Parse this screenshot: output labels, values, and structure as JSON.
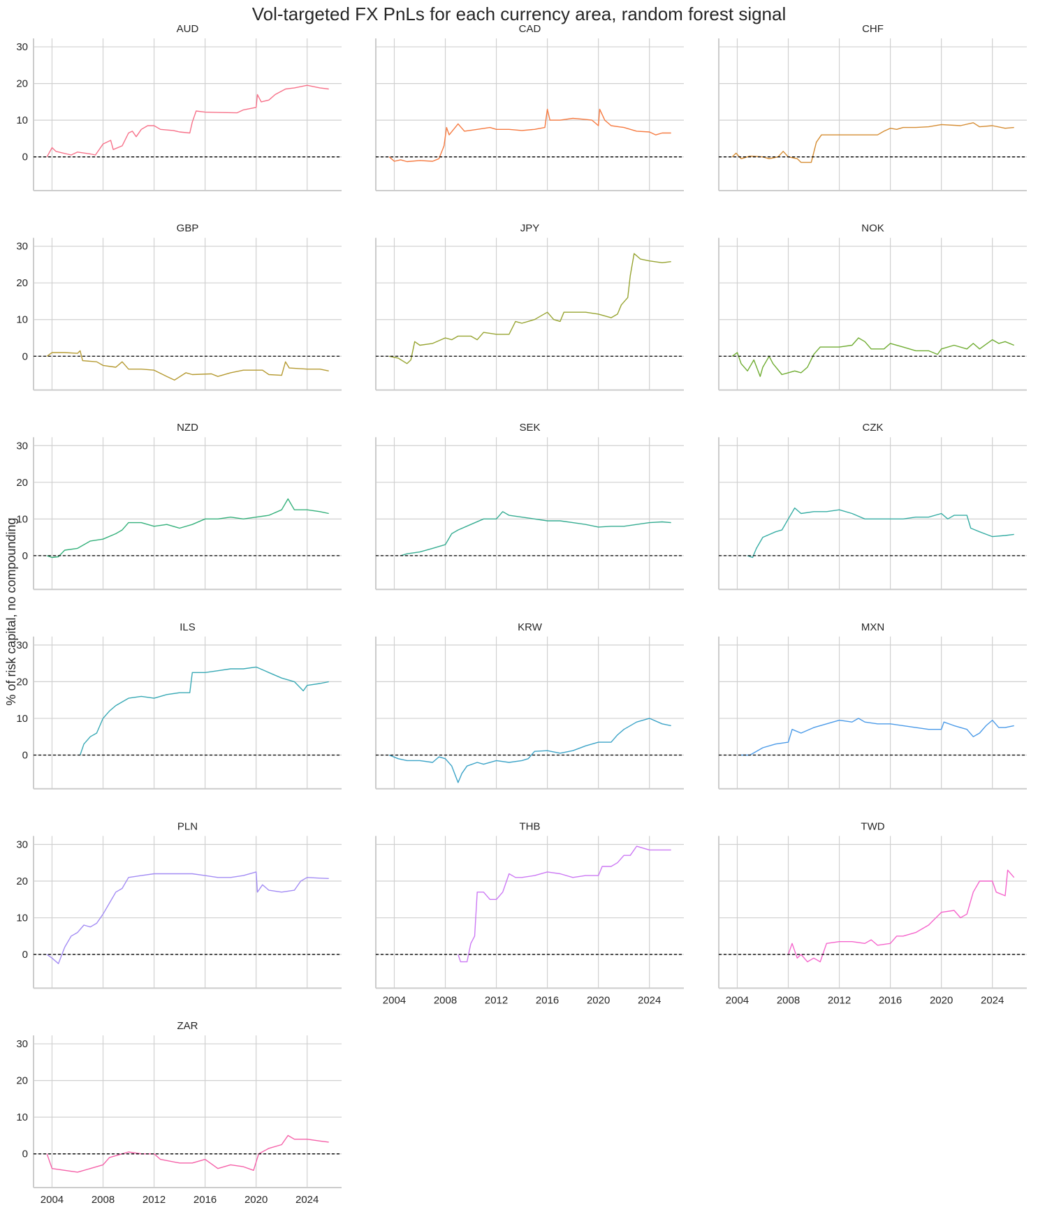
{
  "chart_data": {
    "type": "line",
    "title": "Vol-targeted FX PnLs for each currency area, random forest signal",
    "ylabel": "% of risk capital, no compounding",
    "xlabel": "",
    "ylim": [
      -9.2,
      32.3
    ],
    "xlim": [
      2002.55,
      2026.7
    ],
    "x_ticks": [
      "2004",
      "2008",
      "2012",
      "2016",
      "2020",
      "2024"
    ],
    "y_ticks": [
      "0",
      "10",
      "20",
      "30"
    ],
    "grid": true,
    "reference_line": {
      "y": 0,
      "style": "dashed",
      "color": "#000000"
    },
    "panels": [
      {
        "name": "AUD",
        "color": "#f77189",
        "x": [
          2003.6,
          2004.0,
          2004.3,
          2005.5,
          2006.0,
          2007.0,
          2007.4,
          2008.0,
          2008.6,
          2008.8,
          2009.5,
          2010.0,
          2010.3,
          2010.6,
          2011.0,
          2011.5,
          2012.0,
          2012.5,
          2013.5,
          2014.0,
          2014.8,
          2015.0,
          2015.3,
          2016,
          2017,
          2018.5,
          2019,
          2020.0,
          2020.1,
          2020.4,
          2021,
          2021.5,
          2022.3,
          2023,
          2024.0,
          2025,
          2025.7
        ],
        "y": [
          0,
          2.5,
          1.5,
          0.5,
          1.3,
          0.8,
          0.5,
          3.5,
          4.5,
          2,
          3,
          6.5,
          7,
          5.5,
          7.5,
          8.5,
          8.5,
          7.5,
          7.2,
          6.8,
          6.5,
          9.5,
          12.5,
          12.2,
          12.1,
          12,
          12.8,
          13.5,
          17,
          15,
          15.5,
          17,
          18.5,
          18.8,
          19.5,
          18.8,
          18.5
        ]
      },
      {
        "name": "CAD",
        "color": "#f67a40",
        "x": [
          2003.6,
          2004,
          2004.5,
          2005,
          2006,
          2007,
          2007.5,
          2007.9,
          2008.1,
          2008.3,
          2009,
          2009.5,
          2010.5,
          2011.5,
          2012,
          2013,
          2014,
          2015,
          2015.8,
          2016.0,
          2016.2,
          2017,
          2018,
          2019,
          2019.5,
          2020.0,
          2020.1,
          2020.5,
          2021,
          2022,
          2023,
          2024,
          2024.5,
          2025,
          2025.7
        ],
        "y": [
          0,
          -1.2,
          -0.8,
          -1.3,
          -1,
          -1.2,
          -0.5,
          3,
          8,
          6,
          9,
          7,
          7.5,
          8,
          7.5,
          7.5,
          7.2,
          7.5,
          8,
          13,
          10,
          10,
          10.5,
          10.2,
          10,
          8.5,
          13,
          10,
          8.5,
          8,
          7,
          6.8,
          6,
          6.5,
          6.5
        ]
      },
      {
        "name": "CHF",
        "color": "#d58c32",
        "x": [
          2003.6,
          2003.9,
          2004.3,
          2005,
          2006,
          2006.5,
          2007.2,
          2007.6,
          2008,
          2008.7,
          2009,
          2009.8,
          2010.2,
          2010.6,
          2011.2,
          2015,
          2015.5,
          2016,
          2016.5,
          2017,
          2018,
          2019,
          2020,
          2021.5,
          2022.5,
          2023,
          2024,
          2025,
          2025.7
        ],
        "y": [
          0,
          1,
          -0.5,
          0.2,
          0,
          -0.5,
          0,
          1.5,
          0,
          -0.5,
          -1.5,
          -1.5,
          4,
          6,
          6,
          6,
          7,
          7.8,
          7.5,
          8,
          8,
          8.2,
          8.8,
          8.5,
          9.3,
          8.2,
          8.5,
          7.8,
          8
        ]
      },
      {
        "name": "GBP",
        "color": "#b59a31",
        "x": [
          2003.6,
          2004,
          2005,
          2006,
          2006.2,
          2006.4,
          2007.5,
          2008,
          2009,
          2009.5,
          2010,
          2011,
          2012,
          2013,
          2013.6,
          2014.5,
          2015,
          2016.5,
          2017,
          2018,
          2019,
          2020.5,
          2021,
          2022,
          2022.3,
          2022.6,
          2024,
          2025,
          2025.7
        ],
        "y": [
          0,
          1,
          1,
          0.8,
          1.5,
          -1.2,
          -1.5,
          -2.5,
          -3,
          -1.5,
          -3.5,
          -3.5,
          -3.8,
          -5.5,
          -6.5,
          -4.5,
          -5,
          -4.8,
          -5.5,
          -4.5,
          -3.8,
          -3.8,
          -5,
          -5.2,
          -1.5,
          -3.2,
          -3.5,
          -3.5,
          -4
        ]
      },
      {
        "name": "JPY",
        "color": "#97a431",
        "x": [
          2003.6,
          2004.3,
          2005,
          2005.3,
          2005.6,
          2006,
          2007,
          2008,
          2008.5,
          2009,
          2010,
          2010.5,
          2011,
          2012,
          2013,
          2013.5,
          2014,
          2015,
          2016,
          2016.5,
          2017,
          2017.3,
          2018,
          2019,
          2020,
          2021,
          2021.5,
          2021.8,
          2022.3,
          2022.5,
          2022.8,
          2023.3,
          2024,
          2025,
          2025.7
        ],
        "y": [
          0,
          -0.5,
          -2,
          -1,
          4,
          3,
          3.5,
          5,
          4.5,
          5.5,
          5.5,
          4.5,
          6.5,
          6,
          6,
          9.5,
          9,
          10,
          12,
          10,
          9.5,
          12,
          12,
          12,
          11.5,
          10.5,
          11.5,
          14,
          16,
          22,
          28,
          26.5,
          26,
          25.5,
          25.8
        ]
      },
      {
        "name": "NOK",
        "color": "#6fac31",
        "x": [
          2003.6,
          2004,
          2004.3,
          2004.8,
          2005.3,
          2005.8,
          2006,
          2006.5,
          2006.8,
          2007.5,
          2008,
          2008.5,
          2009,
          2009.5,
          2010,
          2010.5,
          2012,
          2013,
          2013.5,
          2014,
          2014.5,
          2015.5,
          2016,
          2017,
          2018,
          2019,
          2019.7,
          2020,
          2021,
          2022,
          2022.5,
          2023,
          2024,
          2024.5,
          2025,
          2025.7
        ],
        "y": [
          0,
          1,
          -2,
          -4,
          -1,
          -5.5,
          -3,
          0,
          -2,
          -5,
          -4.5,
          -4,
          -4.5,
          -3,
          0.5,
          2.5,
          2.5,
          3,
          5,
          4,
          2,
          2,
          3.5,
          2.5,
          1.5,
          1.5,
          0.5,
          2,
          3,
          2,
          3.5,
          2,
          4.5,
          3.5,
          4,
          3
        ]
      },
      {
        "name": "NZD",
        "color": "#33b07a",
        "x": [
          2003.6,
          2004,
          2004.5,
          2005,
          2006,
          2007,
          2008,
          2009,
          2009.5,
          2010,
          2011,
          2012,
          2013,
          2014,
          2015,
          2016,
          2017,
          2018,
          2019,
          2020,
          2021,
          2022,
          2022.5,
          2023,
          2024,
          2025,
          2025.7
        ],
        "y": [
          0,
          -0.5,
          -0.3,
          1.5,
          2,
          4,
          4.5,
          6,
          7,
          9,
          9,
          8,
          8.5,
          7.5,
          8.5,
          10,
          10,
          10.5,
          10,
          10.5,
          11,
          12.5,
          15.5,
          12.5,
          12.5,
          12,
          11.5
        ]
      },
      {
        "name": "SEK",
        "color": "#35ac91",
        "x": [
          2004.5,
          2005,
          2006,
          2007,
          2008,
          2008.5,
          2009,
          2010,
          2011,
          2012,
          2012.5,
          2013,
          2014,
          2015,
          2016,
          2017,
          2018,
          2019,
          2020,
          2021,
          2022,
          2023,
          2024,
          2025,
          2025.7
        ],
        "y": [
          0,
          0.5,
          1,
          2,
          3,
          6,
          7,
          8.5,
          10,
          10,
          12,
          11,
          10.5,
          10,
          9.5,
          9.5,
          9,
          8.5,
          7.8,
          8,
          8,
          8.5,
          9,
          9.2,
          9
        ]
      },
      {
        "name": "CZK",
        "color": "#36ada4",
        "x": [
          2004.8,
          2005.2,
          2005.5,
          2006,
          2007,
          2007.5,
          2008,
          2008.5,
          2009,
          2010,
          2011,
          2012,
          2013,
          2014,
          2015,
          2016,
          2017,
          2018,
          2019,
          2020,
          2020.5,
          2021,
          2022,
          2022.3,
          2023,
          2024,
          2025,
          2025.7
        ],
        "y": [
          0,
          -0.5,
          2,
          5,
          6.5,
          7,
          10,
          13,
          11.5,
          12,
          12,
          12.5,
          11.5,
          10,
          10,
          10,
          10,
          10.5,
          10.5,
          11.5,
          10,
          11,
          11,
          7.5,
          6.5,
          5.2,
          5.5,
          5.8
        ]
      },
      {
        "name": "ILS",
        "color": "#38a9b5",
        "x": [
          2006.2,
          2006.5,
          2007,
          2007.5,
          2008,
          2008.5,
          2009,
          2010,
          2011,
          2012,
          2013,
          2014,
          2014.8,
          2015,
          2016,
          2017,
          2018,
          2019,
          2020,
          2021,
          2022,
          2023,
          2023.7,
          2024,
          2025,
          2025.7
        ],
        "y": [
          0,
          3,
          5,
          6,
          10,
          12,
          13.5,
          15.5,
          16,
          15.5,
          16.5,
          17,
          17,
          22.5,
          22.5,
          23,
          23.5,
          23.5,
          24,
          22.5,
          21,
          20,
          17.5,
          19,
          19.5,
          20
        ]
      },
      {
        "name": "KRW",
        "color": "#3ba3c7",
        "x": [
          2003.6,
          2004.3,
          2005,
          2006,
          2007,
          2007.5,
          2008,
          2008.5,
          2009,
          2009.3,
          2009.7,
          2010.5,
          2011,
          2012,
          2013,
          2014,
          2014.5,
          2015,
          2016,
          2017,
          2018,
          2019,
          2020,
          2021,
          2021.5,
          2022,
          2023,
          2024,
          2025,
          2025.7
        ],
        "y": [
          0,
          -1,
          -1.5,
          -1.5,
          -2,
          -0.5,
          -1,
          -3,
          -7.5,
          -5,
          -3,
          -2,
          -2.5,
          -1.5,
          -2,
          -1.5,
          -1,
          1,
          1.2,
          0.5,
          1.2,
          2.5,
          3.5,
          3.5,
          5.5,
          7,
          9,
          10,
          8.5,
          8
        ]
      },
      {
        "name": "MXN",
        "color": "#4a9ae8",
        "x": [
          2004.3,
          2005,
          2006,
          2007,
          2008,
          2008.3,
          2009,
          2010,
          2011,
          2012,
          2013,
          2013.5,
          2014,
          2015,
          2016,
          2017,
          2018,
          2019,
          2020,
          2020.2,
          2021,
          2022,
          2022.5,
          2023,
          2023.5,
          2024,
          2024.5,
          2025,
          2025.7
        ],
        "y": [
          0,
          0,
          2,
          3,
          3.5,
          7,
          6,
          7.5,
          8.5,
          9.5,
          9,
          10,
          9,
          8.5,
          8.5,
          8,
          7.5,
          7,
          7,
          9,
          8,
          7,
          5,
          6,
          8,
          9.5,
          7.5,
          7.5,
          8
        ]
      },
      {
        "name": "PLN",
        "color": "#a38cf4",
        "x": [
          2003.6,
          2004,
          2004.5,
          2005,
          2005.5,
          2006,
          2006.5,
          2007,
          2007.5,
          2008,
          2008.5,
          2009,
          2009.5,
          2010,
          2011,
          2012,
          2013,
          2014,
          2015,
          2016,
          2017,
          2018,
          2019,
          2020,
          2020.1,
          2020.5,
          2021,
          2022,
          2023,
          2023.5,
          2024,
          2025,
          2025.7
        ],
        "y": [
          0,
          -1,
          -2.5,
          2,
          5,
          6,
          8,
          7.5,
          8.5,
          11,
          14,
          17,
          18,
          21,
          21.5,
          22,
          22,
          22,
          22,
          21.5,
          21,
          21,
          21.5,
          22.5,
          17,
          19,
          17.5,
          17,
          17.5,
          20,
          21,
          20.8,
          20.7
        ]
      },
      {
        "name": "THB",
        "color": "#cc79f4",
        "x": [
          2009,
          2009.2,
          2009.7,
          2010,
          2010.3,
          2010.5,
          2011,
          2011.5,
          2012,
          2012.5,
          2013,
          2013.5,
          2014,
          2015,
          2016,
          2017,
          2018,
          2019,
          2020,
          2020.3,
          2021,
          2021.5,
          2022,
          2022.5,
          2023,
          2024,
          2025,
          2025.7
        ],
        "y": [
          0,
          -2,
          -2,
          3,
          5,
          17,
          17,
          15,
          15,
          17,
          22,
          21,
          21,
          21.5,
          22.5,
          22,
          21,
          21.5,
          21.5,
          24,
          24,
          25,
          27,
          27,
          29.5,
          28.5,
          28.5,
          28.5
        ]
      },
      {
        "name": "TWD",
        "color": "#f565cc",
        "x": [
          2008,
          2008.3,
          2008.7,
          2009,
          2009.5,
          2010,
          2010.5,
          2011,
          2012,
          2013,
          2014,
          2014.5,
          2015,
          2016,
          2016.5,
          2017,
          2018,
          2019,
          2020,
          2021,
          2021.5,
          2022,
          2022.5,
          2023,
          2024,
          2024.3,
          2025,
          2025.2,
          2025.7
        ],
        "y": [
          0,
          3,
          -1,
          0,
          -2,
          -1,
          -2,
          3,
          3.5,
          3.5,
          3,
          4,
          2.5,
          3,
          5,
          5,
          6,
          8,
          11.5,
          12,
          10,
          11,
          17,
          20,
          20,
          17,
          16,
          23,
          21
        ]
      },
      {
        "name": "ZAR",
        "color": "#f560a8",
        "x": [
          2003.6,
          2004,
          2005,
          2006,
          2007,
          2008,
          2008.5,
          2009,
          2010,
          2011,
          2012,
          2012.5,
          2014,
          2015,
          2016,
          2017,
          2018,
          2019,
          2019.8,
          2020.2,
          2021,
          2022,
          2022.5,
          2023,
          2024,
          2025,
          2025.7
        ],
        "y": [
          0,
          -4,
          -4.5,
          -5,
          -4,
          -3,
          -1,
          -0.5,
          0.5,
          0,
          0,
          -1.5,
          -2.5,
          -2.5,
          -1.5,
          -4,
          -3,
          -3.5,
          -4.5,
          0,
          1.5,
          2.5,
          5,
          4,
          4,
          3.5,
          3.2
        ]
      }
    ]
  }
}
